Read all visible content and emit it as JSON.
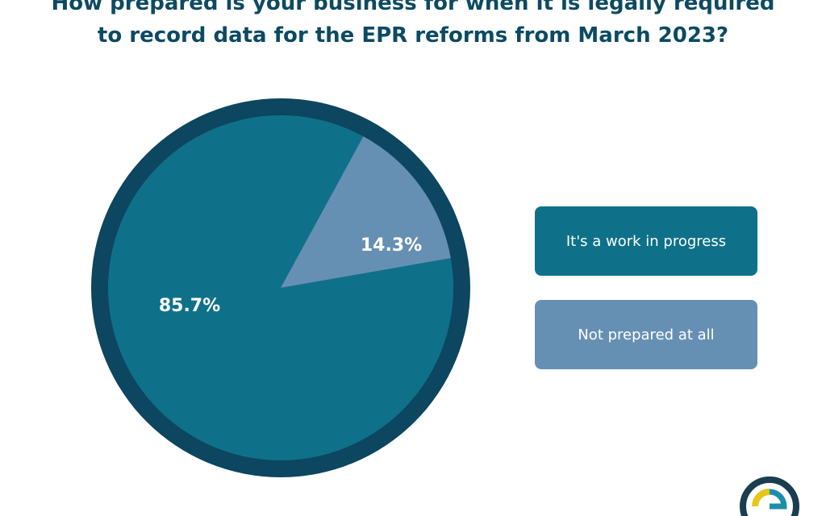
{
  "chart_data": {
    "type": "pie",
    "title_lines": [
      "How prepared is your business for when it is legally required",
      "to record data for the EPR reforms from March 2023?"
    ],
    "slices": [
      {
        "label": "It's a work in progress",
        "value": 85.7,
        "value_label": "85.7%",
        "color": "#0e7189"
      },
      {
        "label": "Not prepared at all",
        "value": 14.3,
        "value_label": "14.3%",
        "color": "#6690b3"
      }
    ],
    "outline_color": "#0c4660",
    "legend_placement": "right"
  },
  "colors": {
    "title": "#0c4a63",
    "logo_ring": "#1a3d4f",
    "logo_accent": "#e6c619",
    "logo_teal": "#1c8fa8"
  },
  "icons": {
    "logo": "company-logo-icon"
  }
}
